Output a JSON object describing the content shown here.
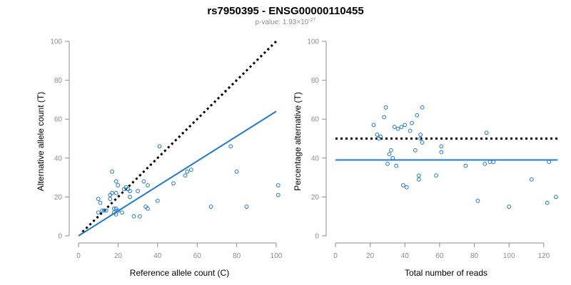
{
  "title": "rs7950395 - ENSG00000110455",
  "subtitle": {
    "prefix": "p-value: 1.93×10",
    "exponent": "-27"
  },
  "colors": {
    "points": "#1f78d1",
    "fit_line": "#1f78d1",
    "reference_line": "#000000",
    "axis": "#8c8c8c"
  },
  "chart_data": [
    {
      "type": "scatter",
      "xlabel": "Reference allele count (C)",
      "ylabel": "Alternative allele count (T)",
      "xlim": [
        0,
        100
      ],
      "ylim": [
        0,
        100
      ],
      "xticks": [
        0,
        20,
        40,
        60,
        80,
        100
      ],
      "yticks": [
        0,
        20,
        40,
        60,
        80,
        100
      ],
      "grid": false,
      "points": [
        [
          10,
          12
        ],
        [
          10,
          19
        ],
        [
          11,
          17
        ],
        [
          12,
          13
        ],
        [
          13,
          13
        ],
        [
          14,
          13
        ],
        [
          16,
          19
        ],
        [
          16,
          21
        ],
        [
          17,
          22
        ],
        [
          17,
          33
        ],
        [
          18,
          14
        ],
        [
          18,
          12
        ],
        [
          19,
          11
        ],
        [
          19,
          14
        ],
        [
          19,
          22
        ],
        [
          20,
          13
        ],
        [
          19,
          28
        ],
        [
          20,
          26
        ],
        [
          22,
          12
        ],
        [
          23,
          24
        ],
        [
          24,
          25
        ],
        [
          25,
          24
        ],
        [
          26,
          20
        ],
        [
          26,
          23
        ],
        [
          28,
          10
        ],
        [
          30,
          23
        ],
        [
          31,
          10
        ],
        [
          33,
          28
        ],
        [
          34,
          15
        ],
        [
          35,
          14
        ],
        [
          35,
          26
        ],
        [
          40,
          18
        ],
        [
          41,
          46
        ],
        [
          48,
          27
        ],
        [
          54,
          31
        ],
        [
          55,
          33
        ],
        [
          57,
          34
        ],
        [
          67,
          15
        ],
        [
          77,
          46
        ],
        [
          80,
          33
        ],
        [
          85,
          15
        ],
        [
          101,
          21
        ],
        [
          101,
          26
        ]
      ],
      "lines": [
        {
          "kind": "reference",
          "style": "dotted",
          "from": [
            2,
            2
          ],
          "to": [
            100,
            100
          ]
        },
        {
          "kind": "fit",
          "style": "solid",
          "from": [
            0,
            0
          ],
          "to": [
            100,
            64
          ]
        }
      ]
    },
    {
      "type": "scatter",
      "xlabel": "Total number of reads",
      "ylabel": "Percentage alternative (T)",
      "xlim": [
        0,
        125
      ],
      "ylim": [
        0,
        100
      ],
      "xticks": [
        0,
        20,
        40,
        60,
        80,
        100,
        120
      ],
      "yticks": [
        0,
        20,
        40,
        60,
        80,
        100
      ],
      "grid": false,
      "points": [
        [
          22,
          57
        ],
        [
          24,
          52
        ],
        [
          25,
          50
        ],
        [
          26,
          51
        ],
        [
          28,
          61
        ],
        [
          29,
          66
        ],
        [
          30,
          37
        ],
        [
          31,
          42
        ],
        [
          32,
          44
        ],
        [
          33,
          40
        ],
        [
          34,
          56
        ],
        [
          35,
          36
        ],
        [
          36,
          55
        ],
        [
          38,
          56
        ],
        [
          39,
          26
        ],
        [
          40,
          57
        ],
        [
          41,
          25
        ],
        [
          43,
          54
        ],
        [
          44,
          58
        ],
        [
          46,
          44
        ],
        [
          47,
          62
        ],
        [
          48,
          31
        ],
        [
          48,
          29
        ],
        [
          49,
          50
        ],
        [
          49,
          52
        ],
        [
          50,
          48
        ],
        [
          50,
          66
        ],
        [
          58,
          31
        ],
        [
          61,
          43
        ],
        [
          61,
          46
        ],
        [
          75,
          36
        ],
        [
          82,
          18
        ],
        [
          86,
          37
        ],
        [
          87,
          53
        ],
        [
          89,
          38
        ],
        [
          91,
          38
        ],
        [
          100,
          15
        ],
        [
          113,
          29
        ],
        [
          122,
          17
        ],
        [
          123,
          38
        ],
        [
          127,
          20
        ]
      ],
      "lines": [
        {
          "kind": "reference",
          "style": "dotted",
          "from": [
            0,
            50
          ],
          "to": [
            128,
            50
          ]
        },
        {
          "kind": "fit",
          "style": "solid",
          "from": [
            0,
            39
          ],
          "to": [
            128,
            39
          ]
        }
      ]
    }
  ]
}
